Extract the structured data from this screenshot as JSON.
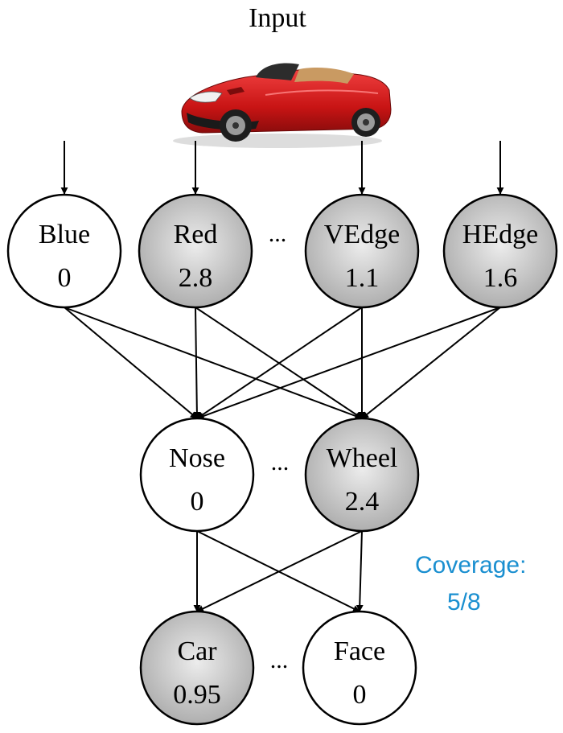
{
  "title": "Input",
  "coverage": {
    "label": "Coverage:",
    "value": "5/8",
    "color": "#1a8fd0"
  },
  "ellipsis": "...",
  "colors": {
    "active_fill_center": "#ececec",
    "active_fill_edge": "#a9a9a9",
    "inactive_fill": "#ffffff"
  },
  "input_image": {
    "icon": "red-convertible-car-icon",
    "body_color": "#d01818"
  },
  "layers": {
    "input": [
      {
        "name": "Blue",
        "value": "0",
        "active": false
      },
      {
        "name": "Red",
        "value": "2.8",
        "active": true
      },
      {
        "name": "VEdge",
        "value": "1.1",
        "active": true
      },
      {
        "name": "HEdge",
        "value": "1.6",
        "active": true
      }
    ],
    "hidden": [
      {
        "name": "Nose",
        "value": "0",
        "active": false
      },
      {
        "name": "Wheel",
        "value": "2.4",
        "active": true
      }
    ],
    "output": [
      {
        "name": "Car",
        "value": "0.95",
        "active": true
      },
      {
        "name": "Face",
        "value": "0",
        "active": false
      }
    ]
  }
}
